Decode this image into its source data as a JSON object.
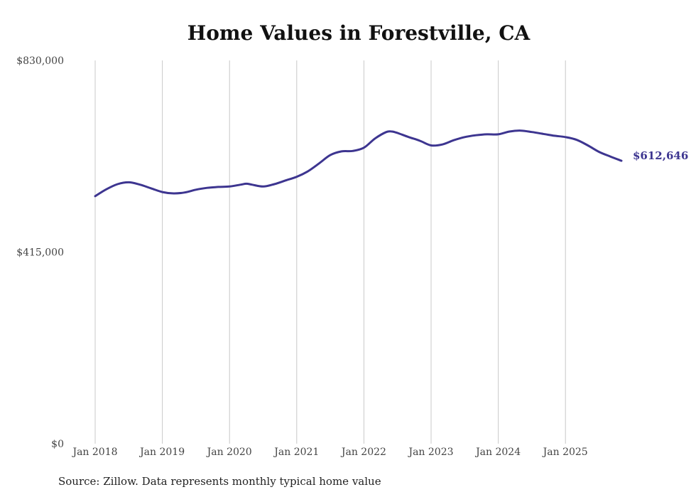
{
  "chart_data": {
    "type": "line",
    "title": "Home Values in Forestville, CA",
    "xlabel": "",
    "ylabel": "",
    "source": "Source: Zillow. Data represents monthly typical home value",
    "ylim": [
      0,
      830000
    ],
    "xlim": [
      2018.0,
      2025.833
    ],
    "grid": "vertical lines at each January",
    "line_color": "#3d3590",
    "y_ticks": [
      {
        "value": 0,
        "label": "$0"
      },
      {
        "value": 415000,
        "label": "$415,000"
      },
      {
        "value": 830000,
        "label": "$830,000"
      }
    ],
    "x_ticks": [
      {
        "value": 2018,
        "label": "Jan 2018"
      },
      {
        "value": 2019,
        "label": "Jan 2019"
      },
      {
        "value": 2020,
        "label": "Jan 2020"
      },
      {
        "value": 2021,
        "label": "Jan 2021"
      },
      {
        "value": 2022,
        "label": "Jan 2022"
      },
      {
        "value": 2023,
        "label": "Jan 2023"
      },
      {
        "value": 2024,
        "label": "Jan 2024"
      },
      {
        "value": 2025,
        "label": "Jan 2025"
      }
    ],
    "end_label": "$612,646",
    "series": [
      {
        "name": "Typical home value",
        "x": [
          2018.0,
          2018.167,
          2018.333,
          2018.5,
          2018.667,
          2018.833,
          2019.0,
          2019.167,
          2019.333,
          2019.5,
          2019.667,
          2019.833,
          2020.0,
          2020.167,
          2020.25,
          2020.333,
          2020.5,
          2020.667,
          2020.833,
          2021.0,
          2021.167,
          2021.333,
          2021.5,
          2021.667,
          2021.833,
          2022.0,
          2022.167,
          2022.333,
          2022.417,
          2022.5,
          2022.667,
          2022.833,
          2023.0,
          2023.167,
          2023.333,
          2023.5,
          2023.667,
          2023.833,
          2024.0,
          2024.167,
          2024.333,
          2024.5,
          2024.667,
          2024.833,
          2025.0,
          2025.167,
          2025.333,
          2025.5,
          2025.667,
          2025.833
        ],
        "values": [
          536000,
          551000,
          562000,
          566000,
          561000,
          553000,
          545000,
          542000,
          544000,
          550000,
          554000,
          556000,
          557000,
          561000,
          563000,
          561000,
          557000,
          562000,
          570000,
          578000,
          590000,
          607000,
          625000,
          633000,
          634000,
          641000,
          661000,
          675000,
          676000,
          673000,
          664000,
          656000,
          646000,
          648000,
          657000,
          664000,
          668000,
          670000,
          670000,
          676000,
          678000,
          675000,
          671000,
          667000,
          664000,
          658000,
          646000,
          632000,
          622000,
          612646
        ]
      }
    ]
  }
}
